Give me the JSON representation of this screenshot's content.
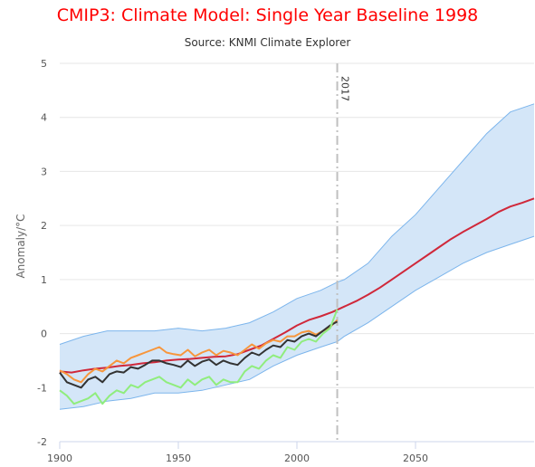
{
  "chart_data": {
    "type": "line",
    "title": "CMIP3: Climate Model: Single Year Baseline 1998",
    "subtitle": "Source: KNMI Climate Explorer",
    "xlabel": "",
    "ylabel": "Anomaly/°C",
    "xlim": [
      1900,
      2100
    ],
    "ylim": [
      -2,
      5
    ],
    "x_ticks": [
      1900,
      1950,
      2000,
      2050
    ],
    "y_ticks": [
      -2,
      -1,
      0,
      1,
      2,
      3,
      4,
      5
    ],
    "grid": true,
    "legend": "none",
    "vertical_marker": {
      "x": 2017,
      "label": "2017"
    },
    "series": [
      {
        "kind": "band",
        "color": "#7cb5ec",
        "fill": "#d4e6f8",
        "x": [
          1900,
          1910,
          1920,
          1930,
          1940,
          1950,
          1960,
          1970,
          1980,
          1990,
          2000,
          2010,
          2017,
          2020,
          2030,
          2040,
          2050,
          2060,
          2070,
          2080,
          2090,
          2100
        ],
        "upper": [
          -0.2,
          -0.05,
          0.05,
          0.05,
          0.05,
          0.1,
          0.05,
          0.1,
          0.2,
          0.4,
          0.65,
          0.8,
          0.95,
          1.0,
          1.3,
          1.8,
          2.2,
          2.7,
          3.2,
          3.7,
          4.1,
          4.25
        ],
        "lower": [
          -1.4,
          -1.35,
          -1.25,
          -1.2,
          -1.1,
          -1.1,
          -1.05,
          -0.95,
          -0.85,
          -0.6,
          -0.4,
          -0.25,
          -0.15,
          -0.05,
          0.2,
          0.5,
          0.8,
          1.05,
          1.3,
          1.5,
          1.65,
          1.8
        ]
      },
      {
        "color": "#d0283a",
        "x": [
          1900,
          1905,
          1910,
          1915,
          1920,
          1925,
          1930,
          1935,
          1940,
          1945,
          1950,
          1955,
          1960,
          1965,
          1970,
          1975,
          1980,
          1985,
          1990,
          1995,
          2000,
          2005,
          2010,
          2015,
          2017,
          2020,
          2025,
          2030,
          2035,
          2040,
          2045,
          2050,
          2055,
          2060,
          2065,
          2070,
          2075,
          2080,
          2085,
          2090,
          2095,
          2100
        ],
        "values": [
          -0.7,
          -0.72,
          -0.68,
          -0.65,
          -0.63,
          -0.6,
          -0.58,
          -0.55,
          -0.53,
          -0.5,
          -0.48,
          -0.47,
          -0.45,
          -0.43,
          -0.42,
          -0.38,
          -0.3,
          -0.22,
          -0.1,
          0.02,
          0.15,
          0.25,
          0.32,
          0.4,
          0.44,
          0.5,
          0.6,
          0.72,
          0.85,
          1.0,
          1.15,
          1.3,
          1.45,
          1.6,
          1.75,
          1.88,
          2.0,
          2.12,
          2.25,
          2.35,
          2.42,
          2.5
        ]
      },
      {
        "color": "#f7963c",
        "x": [
          1900,
          1903,
          1906,
          1909,
          1912,
          1915,
          1918,
          1921,
          1924,
          1927,
          1930,
          1933,
          1936,
          1939,
          1942,
          1945,
          1948,
          1951,
          1954,
          1957,
          1960,
          1963,
          1966,
          1969,
          1972,
          1975,
          1978,
          1981,
          1984,
          1987,
          1990,
          1993,
          1996,
          1999,
          2002,
          2005,
          2008,
          2011,
          2014,
          2017
        ],
        "values": [
          -0.68,
          -0.75,
          -0.85,
          -0.9,
          -0.75,
          -0.65,
          -0.7,
          -0.6,
          -0.5,
          -0.55,
          -0.45,
          -0.4,
          -0.35,
          -0.3,
          -0.25,
          -0.35,
          -0.38,
          -0.4,
          -0.3,
          -0.42,
          -0.35,
          -0.3,
          -0.4,
          -0.32,
          -0.35,
          -0.4,
          -0.3,
          -0.2,
          -0.28,
          -0.18,
          -0.12,
          -0.15,
          -0.05,
          -0.05,
          0.02,
          0.05,
          -0.02,
          0.05,
          0.12,
          0.25
        ]
      },
      {
        "color": "#333333",
        "x": [
          1900,
          1903,
          1906,
          1909,
          1912,
          1915,
          1918,
          1921,
          1924,
          1927,
          1930,
          1933,
          1936,
          1939,
          1942,
          1945,
          1948,
          1951,
          1954,
          1957,
          1960,
          1963,
          1966,
          1969,
          1972,
          1975,
          1978,
          1981,
          1984,
          1987,
          1990,
          1993,
          1996,
          1999,
          2002,
          2005,
          2008,
          2011,
          2014,
          2017
        ],
        "values": [
          -0.72,
          -0.9,
          -0.95,
          -1.0,
          -0.85,
          -0.8,
          -0.9,
          -0.75,
          -0.7,
          -0.72,
          -0.62,
          -0.65,
          -0.58,
          -0.5,
          -0.5,
          -0.55,
          -0.58,
          -0.62,
          -0.5,
          -0.6,
          -0.52,
          -0.48,
          -0.58,
          -0.5,
          -0.55,
          -0.58,
          -0.45,
          -0.35,
          -0.4,
          -0.3,
          -0.22,
          -0.25,
          -0.12,
          -0.15,
          -0.05,
          0.0,
          -0.05,
          0.05,
          0.15,
          0.22
        ]
      },
      {
        "color": "#90ed7d",
        "x": [
          1900,
          1903,
          1906,
          1909,
          1912,
          1915,
          1918,
          1921,
          1924,
          1927,
          1930,
          1933,
          1936,
          1939,
          1942,
          1945,
          1948,
          1951,
          1954,
          1957,
          1960,
          1963,
          1966,
          1969,
          1972,
          1975,
          1978,
          1981,
          1984,
          1987,
          1990,
          1993,
          1996,
          1999,
          2002,
          2005,
          2008,
          2011,
          2014,
          2017
        ],
        "values": [
          -1.05,
          -1.15,
          -1.3,
          -1.25,
          -1.2,
          -1.1,
          -1.3,
          -1.15,
          -1.05,
          -1.1,
          -0.95,
          -1.0,
          -0.9,
          -0.85,
          -0.8,
          -0.9,
          -0.95,
          -1.0,
          -0.85,
          -0.95,
          -0.85,
          -0.8,
          -0.95,
          -0.85,
          -0.9,
          -0.9,
          -0.7,
          -0.6,
          -0.65,
          -0.5,
          -0.4,
          -0.45,
          -0.25,
          -0.3,
          -0.15,
          -0.1,
          -0.15,
          0.0,
          0.1,
          0.45
        ]
      }
    ]
  }
}
